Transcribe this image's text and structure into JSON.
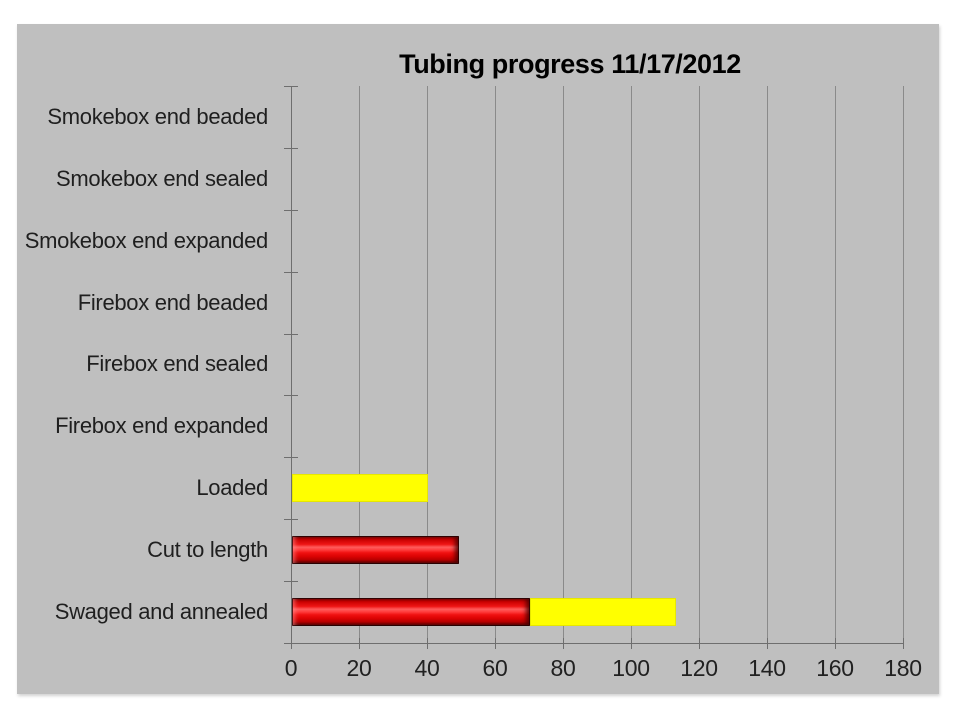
{
  "colors": {
    "page_background": "#FFFFFF",
    "slide_background": "#BFBFBF",
    "gridline": "#8A8A8A",
    "axis": "#6E6E6E",
    "label_text": "#1F1F1F",
    "title_text": "#000000",
    "bar_red": "#EE0000",
    "bar_yellow": "#FFFF00"
  },
  "chart_data": {
    "type": "bar",
    "orientation": "horizontal",
    "stacked": true,
    "title": "Tubing progress 11/17/2012",
    "categories": [
      "Smokebox end beaded",
      "Smokebox end sealed",
      "Smokebox end expanded",
      "Firebox end beaded",
      "Firebox end sealed",
      "Firebox end expanded",
      "Loaded",
      "Cut to length",
      "Swaged and annealed"
    ],
    "series": [
      {
        "name": "red",
        "color": "#EE0000",
        "values": [
          0,
          0,
          0,
          0,
          0,
          0,
          0,
          49,
          70
        ]
      },
      {
        "name": "yellow",
        "color": "#FFFF00",
        "values": [
          0,
          0,
          0,
          0,
          0,
          0,
          40,
          0,
          43
        ]
      }
    ],
    "xlim": [
      0,
      180
    ],
    "x_ticks": [
      0,
      20,
      40,
      60,
      80,
      100,
      120,
      140,
      160,
      180
    ],
    "xlabel": "",
    "ylabel": "",
    "grid": "vertical",
    "legend": "none"
  }
}
